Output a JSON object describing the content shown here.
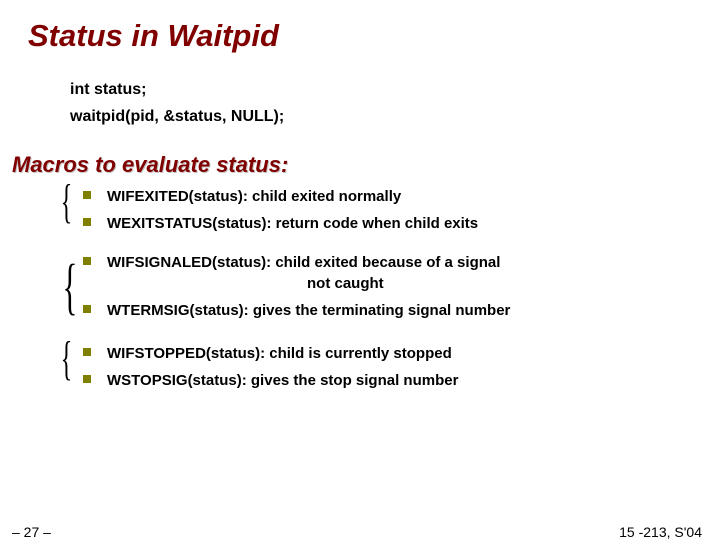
{
  "title": "Status in Waitpid",
  "code": {
    "line1": "int status;",
    "line2": "waitpid(pid, &status, NULL);"
  },
  "section_heading": "Macros to evaluate status:",
  "groups": [
    {
      "items": [
        "WIFEXITED(status): child exited normally",
        "WEXITSTATUS(status): return code when child exits"
      ]
    },
    {
      "items": [
        "WIFSIGNALED(status): child exited because of a signal",
        "WTERMSIG(status): gives the terminating signal number"
      ],
      "continuation": "not caught"
    },
    {
      "items": [
        "WIFSTOPPED(status): child is currently stopped",
        "WSTOPSIG(status): gives the stop signal number"
      ]
    }
  ],
  "footer": {
    "left": "– 27 –",
    "right": "15 -213, S'04"
  },
  "colors": {
    "title": "#800000",
    "bullet": "#808000",
    "text": "#000000",
    "background": "#ffffff"
  }
}
